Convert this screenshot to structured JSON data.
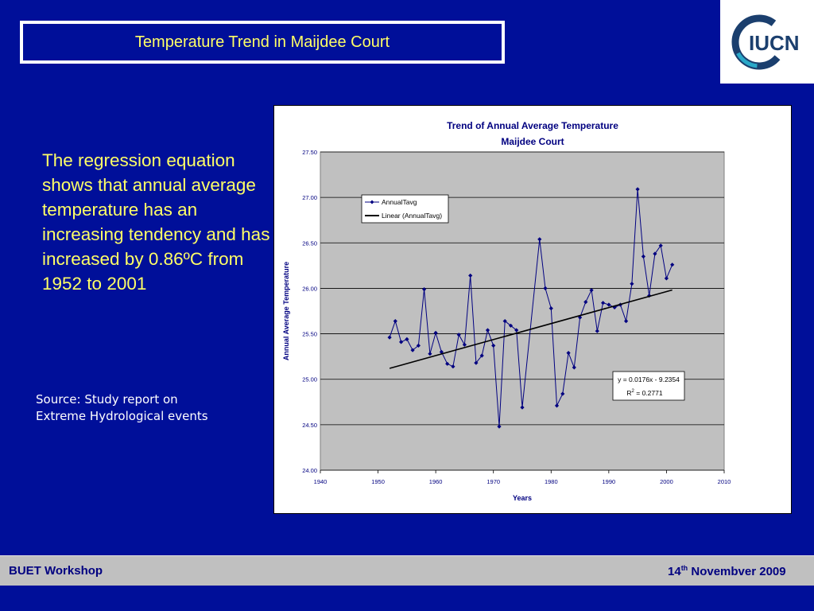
{
  "slide": {
    "title": "Temperature Trend in Maijdee Court",
    "body_text": "The regression equation shows that annual average temperature has an increasing tendency and has increased by 0.86ºC from 1952 to 2001",
    "source_line1": "Source:  Study report on",
    "source_line2": "Extreme Hydrological events"
  },
  "logo": {
    "text": "IUCN",
    "ring_color": "#1b3f6e",
    "accent_color": "#2aa8c8"
  },
  "footer": {
    "left": "BUET Workshop",
    "right_day": "14",
    "right_sup": "th",
    "right_rest": "  Novembver 2009"
  },
  "colors": {
    "background": "#000f99",
    "title_text": "#ffff66",
    "series": "#000080",
    "plot_area": "#c0c0c0"
  },
  "chart_data": {
    "type": "line",
    "title_line1": "Trend of Annual Average Temperature",
    "title_line2": "Maijdee Court",
    "xlabel": "Years",
    "ylabel": "Annual Average Temperature",
    "xlim": [
      1940,
      2010
    ],
    "ylim": [
      24.0,
      27.5
    ],
    "x_ticks": [
      "1940",
      "1950",
      "1960",
      "1970",
      "1980",
      "1990",
      "2000",
      "2010"
    ],
    "y_ticks": [
      "24.00",
      "24.50",
      "25.00",
      "25.50",
      "26.00",
      "26.50",
      "27.00",
      "27.50"
    ],
    "grid": true,
    "legend": [
      "AnnualTavg",
      "Linear (AnnualTavg)"
    ],
    "legend_position": "top-left",
    "equation": "y = 0.0176x - 9.2354",
    "r2_label": "R",
    "r2_sup": "2",
    "r2_value": " = 0.2771",
    "series": [
      {
        "name": "AnnualTavg",
        "x": [
          1952,
          1953,
          1954,
          1955,
          1956,
          1957,
          1958,
          1959,
          1960,
          1961,
          1962,
          1963,
          1964,
          1965,
          1966,
          1967,
          1968,
          1969,
          1970,
          1971,
          1972,
          1973,
          1974,
          1975,
          1976,
          1977,
          1978,
          1979,
          1980,
          1981,
          1982,
          1983,
          1984,
          1985,
          1986,
          1987,
          1988,
          1989,
          1990,
          1991,
          1992,
          1993,
          1994,
          1995,
          1996,
          1997,
          1998,
          1999,
          2000,
          2001
        ],
        "y": [
          25.46,
          25.64,
          25.41,
          25.44,
          25.32,
          25.37,
          25.99,
          25.28,
          25.51,
          25.3,
          25.17,
          25.14,
          25.49,
          25.38,
          26.14,
          25.18,
          25.26,
          25.54,
          25.37,
          24.48,
          25.64,
          25.59,
          25.54,
          24.69,
          null,
          null,
          26.54,
          26.0,
          25.78,
          24.71,
          24.84,
          25.29,
          25.13,
          25.68,
          25.85,
          25.98,
          25.53,
          25.84,
          25.82,
          25.79,
          25.82,
          25.64,
          26.05,
          27.09,
          26.35,
          25.92,
          26.38,
          26.47,
          26.11,
          26.26
        ]
      }
    ],
    "trendline": {
      "name": "Linear (AnnualTavg)",
      "slope": 0.0176,
      "intercept": -9.2354
    }
  }
}
